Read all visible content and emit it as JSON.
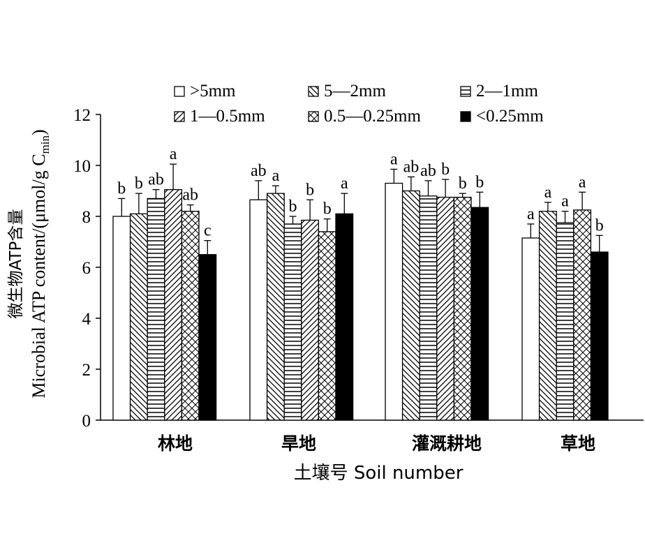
{
  "chart_data": {
    "type": "bar",
    "ylabel_line1": "微生物ATP含量",
    "ylabel_line2_main": "Microbial ATP content/(μmol/g C",
    "ylabel_line2_sub": "min",
    "ylabel_line2_end": ")",
    "xlabel": "土壤号 Soil  number",
    "ylim": [
      0,
      12
    ],
    "yticks": [
      "0",
      "2",
      "4",
      "6",
      "8",
      "10",
      "12"
    ],
    "grid": false,
    "legend_placement": "top",
    "categories": [
      "林地",
      "旱地",
      "灌溉耕地",
      "草地"
    ],
    "series": [
      {
        "name": ">5mm",
        "pattern": "white",
        "values": [
          8.0,
          8.65,
          9.3,
          7.15
        ],
        "errors": [
          0.7,
          0.75,
          0.55,
          0.55
        ],
        "letters": [
          "b",
          "ab",
          "a",
          "a"
        ]
      },
      {
        "name": "5—2mm",
        "pattern": "diag-back",
        "values": [
          8.1,
          8.9,
          9.0,
          8.2
        ],
        "errors": [
          0.8,
          0.3,
          0.55,
          0.35
        ],
        "letters": [
          "b",
          "a",
          "ab",
          "a"
        ]
      },
      {
        "name": "2—1mm",
        "pattern": "horizontal",
        "values": [
          8.7,
          7.7,
          8.8,
          7.75
        ],
        "errors": [
          0.35,
          0.3,
          0.6,
          0.45
        ],
        "letters": [
          "ab",
          "b",
          "ab",
          "a"
        ]
      },
      {
        "name": "1—0.5mm",
        "pattern": "diag-fwd",
        "values": [
          9.05,
          7.85,
          8.75,
          null
        ],
        "errors": [
          1.0,
          0.8,
          0.7,
          null
        ],
        "letters": [
          "a",
          "b",
          "b",
          ""
        ]
      },
      {
        "name": "0.5—0.25mm",
        "pattern": "cross",
        "values": [
          8.2,
          7.4,
          8.75,
          8.25
        ],
        "errors": [
          0.25,
          0.5,
          0.15,
          0.7
        ],
        "letters": [
          "ab",
          "b",
          "b",
          "a"
        ]
      },
      {
        "name": "<0.25mm",
        "pattern": "black",
        "values": [
          6.5,
          8.1,
          8.35,
          6.6
        ],
        "errors": [
          0.55,
          0.8,
          0.6,
          0.65
        ],
        "letters": [
          "c",
          "a",
          "b",
          "b"
        ]
      }
    ]
  }
}
